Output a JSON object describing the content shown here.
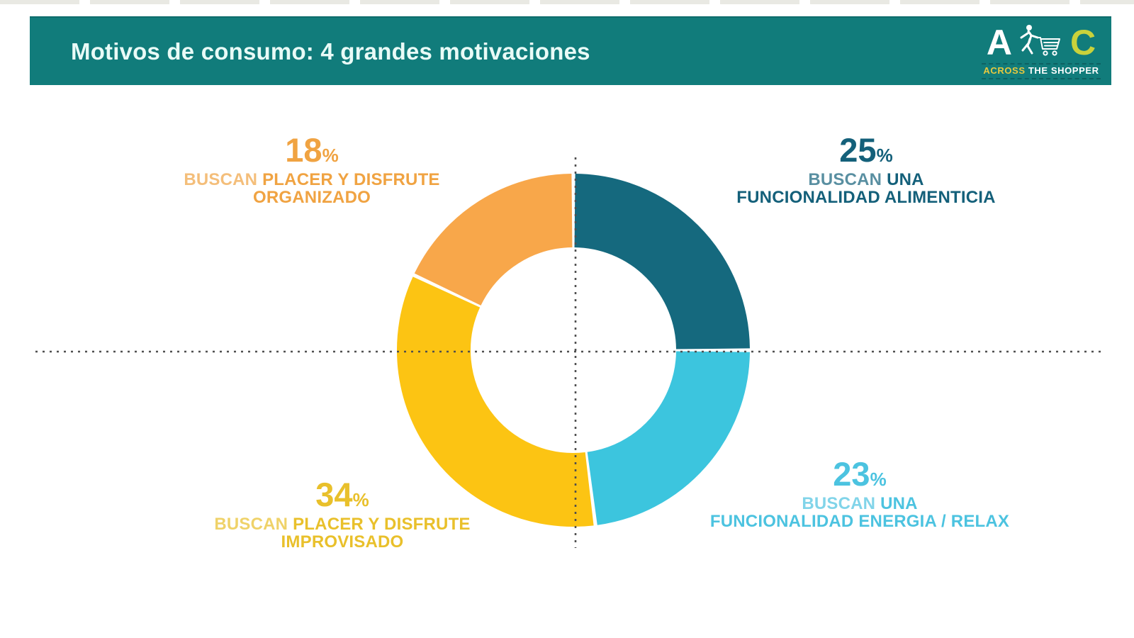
{
  "header": {
    "title": "Motivos de consumo: 4 grandes motivaciones",
    "bar_color": "#117c7b",
    "logo": {
      "letter_a": "A",
      "letter_c": "C",
      "tagline_across": "ACROSS",
      "tagline_rest": "THE SHOPPER",
      "letter_a_color": "#ffffff",
      "letter_c_color": "#c9d23b",
      "tagline_across_color": "#e8c83e",
      "tagline_rest_color": "#ffffff"
    }
  },
  "chart_data": {
    "type": "pie",
    "subtype": "donut",
    "title": "Motivos de consumo: 4 grandes motivaciones",
    "start_angle_deg": 0,
    "direction": "clockwise",
    "crosshair_guides": true,
    "segments": [
      {
        "name": "funcionalidad-alimenticia",
        "value": 25,
        "color": "#15697e"
      },
      {
        "name": "funcionalidad-energia-relax",
        "value": 23,
        "color": "#3cc5de"
      },
      {
        "name": "placer-disfrute-improvisado",
        "value": 34,
        "color": "#fcc413"
      },
      {
        "name": "placer-disfrute-organizado",
        "value": 18,
        "color": "#f8a74a"
      }
    ]
  },
  "labels": {
    "organizado": {
      "pct": "18",
      "suffix": "%",
      "lead": "BUSCAN ",
      "bold1": "PLACER Y DISFRUTE",
      "line2": "ORGANIZADO",
      "color": "#f0a342"
    },
    "alimenticia": {
      "pct": "25",
      "suffix": "%",
      "lead": "BUSCAN ",
      "bold1": "UNA",
      "line2": "FUNCIONALIDAD ALIMENTICIA",
      "color": "#14607a"
    },
    "energia": {
      "pct": "23",
      "suffix": "%",
      "lead": "BUSCAN ",
      "bold1": "UNA",
      "line2": "FUNCIONALIDAD ENERGIA / RELAX",
      "color": "#4cc3e0"
    },
    "improvisado": {
      "pct": "34",
      "suffix": "%",
      "lead": "BUSCAN ",
      "bold1": "PLACER Y DISFRUTE",
      "line2": "IMPROVISADO",
      "color": "#e9c02b"
    }
  }
}
